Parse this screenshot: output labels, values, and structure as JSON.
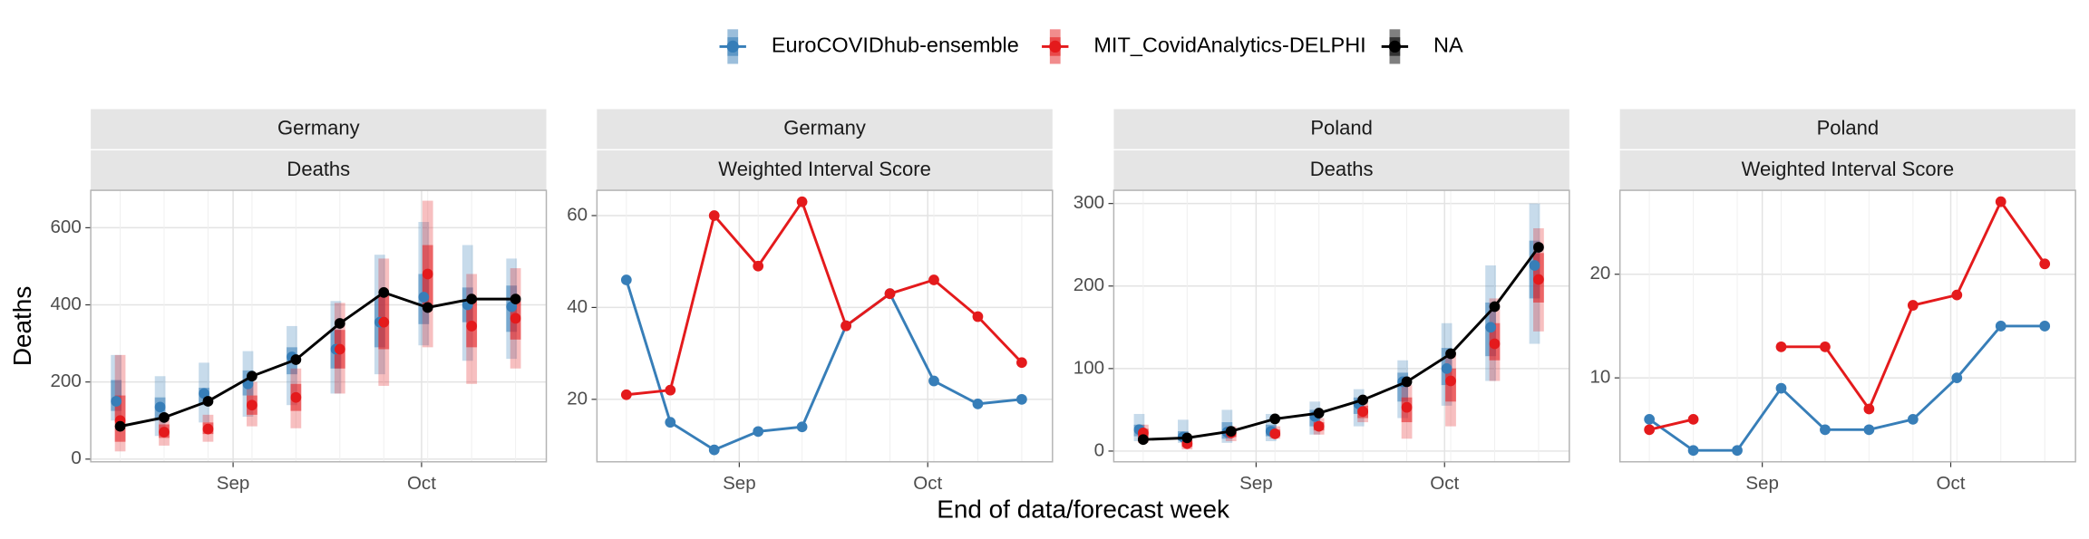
{
  "xlabel": "End of data/forecast week",
  "ylabel": "Deaths",
  "legend": "top",
  "chart_data": [
    {
      "type": "forecast",
      "facets": [
        "Germany",
        "Deaths"
      ],
      "categories": [
        null,
        null,
        null,
        null,
        null,
        null,
        null,
        null,
        null,
        null
      ],
      "xlim": [
        -0.67,
        9.7
      ],
      "xticks": [
        {
          "value": 2.57,
          "label": "Sep"
        },
        {
          "value": 6.86,
          "label": "Oct"
        }
      ],
      "ylim": [
        -7,
        697
      ],
      "yticks": [
        0,
        200,
        400,
        600
      ],
      "grid": true,
      "series": [
        {
          "name": "EuroCOVIDhub-ensemble",
          "color": "#377eb8",
          "values": [
            150,
            135,
            170,
            195,
            265,
            285,
            355,
            420,
            400,
            395
          ],
          "lower90": [
            100,
            60,
            95,
            110,
            140,
            170,
            220,
            295,
            255,
            260
          ],
          "upper90": [
            270,
            215,
            250,
            280,
            345,
            410,
            530,
            615,
            555,
            520
          ],
          "lower50": [
            125,
            100,
            140,
            165,
            220,
            235,
            290,
            350,
            355,
            330
          ],
          "upper50": [
            205,
            160,
            185,
            230,
            290,
            335,
            420,
            480,
            445,
            450
          ]
        },
        {
          "name": "MIT_CovidAnalytics-DELPHI",
          "color": "#e41a1c",
          "values": [
            100,
            70,
            78,
            140,
            160,
            285,
            355,
            480,
            345,
            365
          ],
          "lower90": [
            20,
            35,
            45,
            85,
            80,
            170,
            190,
            290,
            195,
            235
          ],
          "upper90": [
            270,
            115,
            115,
            200,
            235,
            405,
            520,
            670,
            480,
            495
          ],
          "lower50": [
            45,
            55,
            65,
            115,
            125,
            235,
            285,
            390,
            290,
            310
          ],
          "upper50": [
            165,
            90,
            95,
            165,
            195,
            335,
            425,
            555,
            415,
            410
          ]
        },
        {
          "name": "NA",
          "color": "#000000",
          "values": [
            85,
            108,
            150,
            215,
            258,
            352,
            432,
            393,
            415,
            415
          ]
        }
      ]
    },
    {
      "type": "line",
      "facets": [
        "Germany",
        "Weighted Interval Score"
      ],
      "categories": [
        null,
        null,
        null,
        null,
        null,
        null,
        null,
        null,
        null,
        null
      ],
      "xlim": [
        -0.67,
        9.7
      ],
      "xticks": [
        {
          "value": 2.57,
          "label": "Sep"
        },
        {
          "value": 6.86,
          "label": "Oct"
        }
      ],
      "ylim": [
        6.4,
        65.5
      ],
      "yticks": [
        20,
        40,
        60
      ],
      "grid": true,
      "series": [
        {
          "name": "EuroCOVIDhub-ensemble",
          "color": "#377eb8",
          "values": [
            46,
            15,
            9,
            13,
            14,
            36,
            43,
            24,
            19,
            20
          ]
        },
        {
          "name": "MIT_CovidAnalytics-DELPHI",
          "color": "#e41a1c",
          "values": [
            21,
            22,
            60,
            49,
            63,
            36,
            43,
            46,
            38,
            28
          ]
        }
      ]
    },
    {
      "type": "forecast",
      "facets": [
        "Poland",
        "Deaths"
      ],
      "categories": [
        null,
        null,
        null,
        null,
        null,
        null,
        null,
        null,
        null,
        null
      ],
      "xlim": [
        -0.67,
        9.7
      ],
      "xticks": [
        {
          "value": 2.57,
          "label": "Sep"
        },
        {
          "value": 6.86,
          "label": "Oct"
        }
      ],
      "ylim": [
        -13,
        316
      ],
      "yticks": [
        0,
        100,
        200,
        300
      ],
      "grid": true,
      "series": [
        {
          "name": "EuroCOVIDhub-ensemble",
          "color": "#377eb8",
          "values": [
            26,
            17,
            23,
            24,
            42,
            57,
            84,
            100,
            150,
            225
          ],
          "lower90": [
            12,
            10,
            10,
            12,
            20,
            30,
            40,
            55,
            85,
            130
          ],
          "upper90": [
            45,
            38,
            50,
            45,
            60,
            75,
            110,
            155,
            225,
            300
          ],
          "lower50": [
            18,
            13,
            15,
            18,
            30,
            45,
            60,
            80,
            115,
            185
          ],
          "upper50": [
            32,
            24,
            35,
            32,
            50,
            65,
            95,
            125,
            180,
            255
          ]
        },
        {
          "name": "MIT_CovidAnalytics-DELPHI",
          "color": "#e41a1c",
          "values": [
            22,
            9,
            22,
            21,
            30,
            48,
            53,
            85,
            130,
            208
          ],
          "lower90": [
            10,
            2,
            12,
            15,
            20,
            35,
            15,
            30,
            85,
            145
          ],
          "upper90": [
            32,
            18,
            30,
            30,
            40,
            65,
            80,
            120,
            185,
            270
          ],
          "lower50": [
            15,
            5,
            17,
            18,
            25,
            40,
            35,
            60,
            110,
            180
          ],
          "upper50": [
            27,
            13,
            26,
            26,
            35,
            55,
            65,
            100,
            155,
            240
          ]
        },
        {
          "name": "NA",
          "color": "#000000",
          "values": [
            14,
            16,
            24,
            39,
            46,
            62,
            84,
            118,
            175,
            247
          ]
        }
      ]
    },
    {
      "type": "line",
      "facets": [
        "Poland",
        "Weighted Interval Score"
      ],
      "categories": [
        null,
        null,
        null,
        null,
        null,
        null,
        null,
        null,
        null,
        null
      ],
      "xlim": [
        -0.67,
        9.7
      ],
      "xticks": [
        {
          "value": 2.57,
          "label": "Sep"
        },
        {
          "value": 6.86,
          "label": "Oct"
        }
      ],
      "ylim": [
        1.9,
        28.1
      ],
      "yticks": [
        10,
        20
      ],
      "grid": true,
      "series": [
        {
          "name": "EuroCOVIDhub-ensemble",
          "color": "#377eb8",
          "values": [
            6,
            3,
            3,
            9,
            5,
            5,
            6,
            10,
            15,
            15
          ]
        },
        {
          "name": "MIT_CovidAnalytics-DELPHI",
          "color": "#e41a1c",
          "values": [
            5,
            6,
            null,
            13,
            13,
            7,
            17,
            18,
            27,
            21
          ]
        }
      ]
    }
  ]
}
